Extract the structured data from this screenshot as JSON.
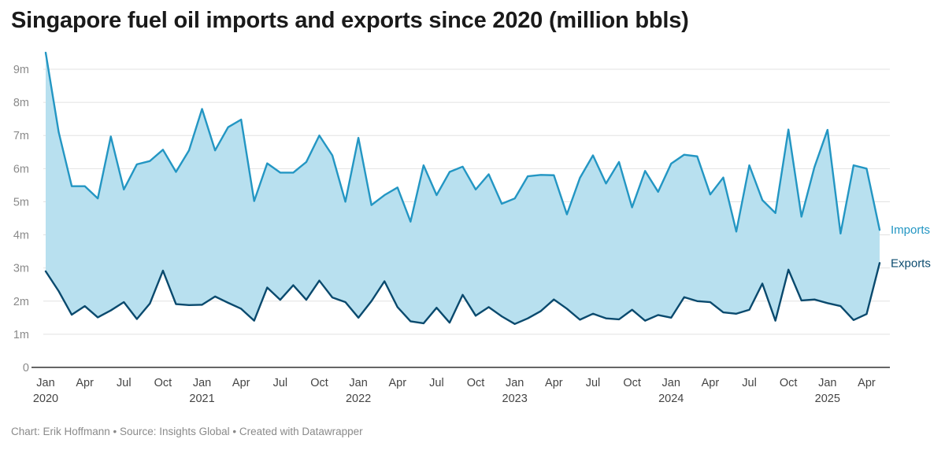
{
  "title": "Singapore fuel oil imports and exports since 2020 (million bbls)",
  "footer": "Chart: Erik Hoffmann • Source: Insights Global • Created with Datawrapper",
  "chart_data": {
    "type": "line",
    "title": "Singapore fuel oil imports and exports since 2020 (million bbls)",
    "unit": "million bbls",
    "x_start": "2020-01",
    "x_end": "2025-05",
    "ylim": [
      0,
      9
    ],
    "yticks": [
      0,
      1,
      2,
      3,
      4,
      5,
      6,
      7,
      8,
      9
    ],
    "ytick_labels": [
      "0",
      "1m",
      "2m",
      "3m",
      "4m",
      "5m",
      "6m",
      "7m",
      "8m",
      "9m"
    ],
    "grid": true,
    "area_between_series": true,
    "xticks": [
      {
        "label": "Jan",
        "year": "2020",
        "month": "2020-01"
      },
      {
        "label": "Apr",
        "year": "",
        "month": "2020-04"
      },
      {
        "label": "Jul",
        "year": "",
        "month": "2020-07"
      },
      {
        "label": "Oct",
        "year": "",
        "month": "2020-10"
      },
      {
        "label": "Jan",
        "year": "2021",
        "month": "2021-01"
      },
      {
        "label": "Apr",
        "year": "",
        "month": "2021-04"
      },
      {
        "label": "Jul",
        "year": "",
        "month": "2021-07"
      },
      {
        "label": "Oct",
        "year": "",
        "month": "2021-10"
      },
      {
        "label": "Jan",
        "year": "2022",
        "month": "2022-01"
      },
      {
        "label": "Apr",
        "year": "",
        "month": "2022-04"
      },
      {
        "label": "Jul",
        "year": "",
        "month": "2022-07"
      },
      {
        "label": "Oct",
        "year": "",
        "month": "2022-10"
      },
      {
        "label": "Jan",
        "year": "2023",
        "month": "2023-01"
      },
      {
        "label": "Apr",
        "year": "",
        "month": "2023-04"
      },
      {
        "label": "Jul",
        "year": "",
        "month": "2023-07"
      },
      {
        "label": "Oct",
        "year": "",
        "month": "2023-10"
      },
      {
        "label": "Jan",
        "year": "2024",
        "month": "2024-01"
      },
      {
        "label": "Apr",
        "year": "",
        "month": "2024-04"
      },
      {
        "label": "Jul",
        "year": "",
        "month": "2024-07"
      },
      {
        "label": "Oct",
        "year": "",
        "month": "2024-10"
      },
      {
        "label": "Jan",
        "year": "2025",
        "month": "2025-01"
      },
      {
        "label": "Apr",
        "year": "",
        "month": "2025-04"
      }
    ],
    "area_color": "#b8e0ef",
    "series": [
      {
        "name": "Imports",
        "color": "#2396c3",
        "values": [
          9.5,
          7.1,
          5.47,
          5.47,
          5.1,
          6.97,
          5.37,
          6.13,
          6.23,
          6.57,
          5.9,
          6.55,
          7.8,
          6.55,
          7.25,
          7.48,
          5.02,
          6.16,
          5.88,
          5.88,
          6.2,
          7.0,
          6.4,
          5.0,
          6.93,
          4.9,
          5.2,
          5.43,
          4.4,
          6.1,
          5.2,
          5.9,
          6.06,
          5.37,
          5.83,
          4.94,
          5.1,
          5.77,
          5.81,
          5.8,
          4.62,
          5.72,
          6.4,
          5.55,
          6.2,
          4.83,
          5.93,
          5.3,
          6.15,
          6.42,
          6.37,
          5.22,
          5.73,
          4.1,
          6.1,
          5.05,
          4.66,
          7.18,
          4.55,
          6.05,
          7.17,
          4.04,
          6.1,
          6.0,
          4.15
        ]
      },
      {
        "name": "Exports",
        "color": "#0a4a6e",
        "values": [
          2.9,
          2.3,
          1.59,
          1.85,
          1.51,
          1.72,
          1.97,
          1.46,
          1.93,
          2.92,
          1.91,
          1.88,
          1.89,
          2.14,
          1.95,
          1.77,
          1.41,
          2.41,
          2.04,
          2.48,
          2.04,
          2.62,
          2.11,
          1.97,
          1.5,
          2.0,
          2.6,
          1.82,
          1.39,
          1.33,
          1.8,
          1.35,
          2.19,
          1.56,
          1.82,
          1.54,
          1.31,
          1.48,
          1.7,
          2.05,
          1.77,
          1.44,
          1.62,
          1.48,
          1.45,
          1.74,
          1.41,
          1.58,
          1.5,
          2.12,
          2.0,
          1.97,
          1.66,
          1.62,
          1.74,
          2.53,
          1.41,
          2.95,
          2.02,
          2.05,
          1.94,
          1.85,
          1.43,
          1.61,
          3.15
        ]
      }
    ]
  }
}
